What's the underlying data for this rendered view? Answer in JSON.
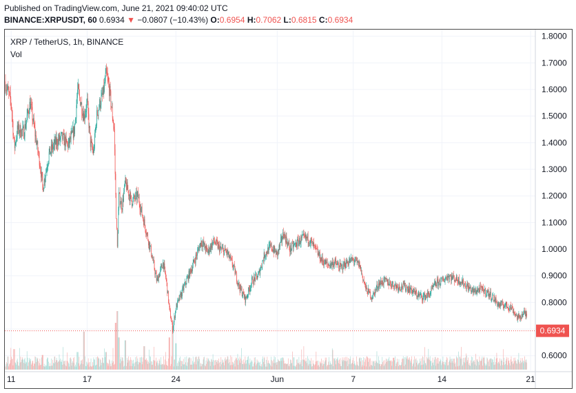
{
  "header": {
    "published": "Published on TradingView.com, June 21, 2021 09:40:02 UTC",
    "symbol": "BINANCE:XRPUSDT, 60",
    "last": "0.6934",
    "down_arrow": "▼",
    "change": "−0.0807 (−10.43%)",
    "o_label": "O:",
    "o_value": "0.6954",
    "h_label": "H:",
    "h_value": "0.7062",
    "l_label": "L:",
    "l_value": "0.6815",
    "c_label": "C:",
    "c_value": "0.6934"
  },
  "legend": {
    "title": "XRP / TetherUS, 1h, BINANCE",
    "vol": "Vol"
  },
  "colors": {
    "up": "#26a69a",
    "down": "#ef5350",
    "vol_up": "#9fd8d2",
    "vol_down": "#f5a9a8",
    "grid": "#f0f3fa",
    "axis_text": "#131722",
    "price_tag": "#ef5350"
  },
  "chart_data": {
    "type": "candlestick",
    "interval": "1h",
    "x_tick_labels": [
      "11",
      "17",
      "24",
      "Jun",
      "7",
      "14",
      "21"
    ],
    "x_tick_dates": [
      "2021-05-11",
      "2021-05-17",
      "2021-05-24",
      "2021-06-01",
      "2021-06-07",
      "2021-06-14",
      "2021-06-21"
    ],
    "x_range": [
      "2021-05-10T12:00",
      "2021-06-21T09:00"
    ],
    "y_ticks": [
      "1.8000",
      "1.7000",
      "1.6000",
      "1.5000",
      "1.4000",
      "1.3000",
      "1.2000",
      "1.1000",
      "1.0000",
      "0.9000",
      "0.8000",
      "0.7000",
      "0.6000"
    ],
    "ylim": [
      0.545,
      1.825
    ],
    "last_price": 0.6934,
    "last_price_label": "0.6934",
    "grid": true,
    "path": [
      [
        "2021-05-10T12:00",
        1.63
      ],
      [
        "2021-05-11T00:00",
        1.55
      ],
      [
        "2021-05-11T06:00",
        1.38
      ],
      [
        "2021-05-11T12:00",
        1.45
      ],
      [
        "2021-05-12T00:00",
        1.44
      ],
      [
        "2021-05-12T12:00",
        1.55
      ],
      [
        "2021-05-13T00:00",
        1.4
      ],
      [
        "2021-05-13T06:00",
        1.33
      ],
      [
        "2021-05-13T12:00",
        1.23
      ],
      [
        "2021-05-14T00:00",
        1.36
      ],
      [
        "2021-05-14T12:00",
        1.4
      ],
      [
        "2021-05-15T00:00",
        1.42
      ],
      [
        "2021-05-15T12:00",
        1.39
      ],
      [
        "2021-05-16T00:00",
        1.45
      ],
      [
        "2021-05-16T06:00",
        1.6
      ],
      [
        "2021-05-16T18:00",
        1.5
      ],
      [
        "2021-05-17T00:00",
        1.55
      ],
      [
        "2021-05-17T06:00",
        1.4
      ],
      [
        "2021-05-17T12:00",
        1.36
      ],
      [
        "2021-05-17T18:00",
        1.5
      ],
      [
        "2021-05-18T00:00",
        1.55
      ],
      [
        "2021-05-18T06:00",
        1.58
      ],
      [
        "2021-05-18T12:00",
        1.66
      ],
      [
        "2021-05-18T18:00",
        1.6
      ],
      [
        "2021-05-19T00:00",
        1.5
      ],
      [
        "2021-05-19T03:00",
        1.45
      ],
      [
        "2021-05-19T06:00",
        1.2
      ],
      [
        "2021-05-19T09:00",
        1.0
      ],
      [
        "2021-05-19T12:00",
        1.2
      ],
      [
        "2021-05-19T18:00",
        1.16
      ],
      [
        "2021-05-20T00:00",
        1.25
      ],
      [
        "2021-05-20T12:00",
        1.18
      ],
      [
        "2021-05-21T00:00",
        1.2
      ],
      [
        "2021-05-21T12:00",
        1.1
      ],
      [
        "2021-05-22T00:00",
        1.0
      ],
      [
        "2021-05-22T12:00",
        0.88
      ],
      [
        "2021-05-23T00:00",
        0.95
      ],
      [
        "2021-05-23T06:00",
        0.88
      ],
      [
        "2021-05-23T12:00",
        0.77
      ],
      [
        "2021-05-23T18:00",
        0.7
      ],
      [
        "2021-05-24T00:00",
        0.78
      ],
      [
        "2021-05-24T12:00",
        0.84
      ],
      [
        "2021-05-25T00:00",
        0.9
      ],
      [
        "2021-05-25T12:00",
        0.96
      ],
      [
        "2021-05-26T00:00",
        1.03
      ],
      [
        "2021-05-26T12:00",
        0.99
      ],
      [
        "2021-05-27T00:00",
        1.03
      ],
      [
        "2021-05-27T12:00",
        1.0
      ],
      [
        "2021-05-28T00:00",
        0.99
      ],
      [
        "2021-05-28T12:00",
        0.94
      ],
      [
        "2021-05-29T00:00",
        0.86
      ],
      [
        "2021-05-29T12:00",
        0.81
      ],
      [
        "2021-05-30T00:00",
        0.88
      ],
      [
        "2021-05-30T12:00",
        0.9
      ],
      [
        "2021-05-31T00:00",
        0.98
      ],
      [
        "2021-05-31T12:00",
        1.01
      ],
      [
        "2021-06-01T00:00",
        0.98
      ],
      [
        "2021-06-01T12:00",
        1.06
      ],
      [
        "2021-06-02T00:00",
        1.0
      ],
      [
        "2021-06-02T12:00",
        1.02
      ],
      [
        "2021-06-03T00:00",
        1.04
      ],
      [
        "2021-06-03T12:00",
        1.04
      ],
      [
        "2021-06-04T00:00",
        1.0
      ],
      [
        "2021-06-04T12:00",
        0.96
      ],
      [
        "2021-06-05T00:00",
        0.94
      ],
      [
        "2021-06-05T12:00",
        0.95
      ],
      [
        "2021-06-06T00:00",
        0.93
      ],
      [
        "2021-06-06T12:00",
        0.95
      ],
      [
        "2021-06-07T00:00",
        0.96
      ],
      [
        "2021-06-07T12:00",
        0.94
      ],
      [
        "2021-06-08T00:00",
        0.85
      ],
      [
        "2021-06-08T12:00",
        0.82
      ],
      [
        "2021-06-09T00:00",
        0.87
      ],
      [
        "2021-06-09T12:00",
        0.88
      ],
      [
        "2021-06-10T00:00",
        0.87
      ],
      [
        "2021-06-10T12:00",
        0.86
      ],
      [
        "2021-06-11T00:00",
        0.86
      ],
      [
        "2021-06-11T12:00",
        0.85
      ],
      [
        "2021-06-12T00:00",
        0.83
      ],
      [
        "2021-06-12T12:00",
        0.82
      ],
      [
        "2021-06-13T00:00",
        0.83
      ],
      [
        "2021-06-13T12:00",
        0.87
      ],
      [
        "2021-06-14T00:00",
        0.88
      ],
      [
        "2021-06-14T12:00",
        0.9
      ],
      [
        "2021-06-15T00:00",
        0.89
      ],
      [
        "2021-06-15T12:00",
        0.88
      ],
      [
        "2021-06-16T00:00",
        0.86
      ],
      [
        "2021-06-16T12:00",
        0.84
      ],
      [
        "2021-06-17T00:00",
        0.85
      ],
      [
        "2021-06-17T12:00",
        0.84
      ],
      [
        "2021-06-18T00:00",
        0.82
      ],
      [
        "2021-06-18T12:00",
        0.79
      ],
      [
        "2021-06-19T00:00",
        0.79
      ],
      [
        "2021-06-19T12:00",
        0.78
      ],
      [
        "2021-06-20T00:00",
        0.74
      ],
      [
        "2021-06-20T12:00",
        0.76
      ],
      [
        "2021-06-21T00:00",
        0.74
      ],
      [
        "2021-06-21T09:00",
        0.6934
      ]
    ],
    "volume_spikes": [
      [
        "2021-05-11T06:00",
        0.35
      ],
      [
        "2021-05-13T12:00",
        0.25
      ],
      [
        "2021-05-16T06:00",
        0.3
      ],
      [
        "2021-05-16T18:00",
        0.65
      ],
      [
        "2021-05-18T12:00",
        0.3
      ],
      [
        "2021-05-19T06:00",
        0.8
      ],
      [
        "2021-05-19T09:00",
        1.0
      ],
      [
        "2021-05-19T12:00",
        0.55
      ],
      [
        "2021-05-20T00:00",
        0.5
      ],
      [
        "2021-05-21T12:00",
        0.4
      ],
      [
        "2021-05-23T12:00",
        0.55
      ],
      [
        "2021-05-23T18:00",
        0.75
      ],
      [
        "2021-05-24T00:00",
        0.45
      ],
      [
        "2021-06-21T06:00",
        0.3
      ]
    ]
  }
}
